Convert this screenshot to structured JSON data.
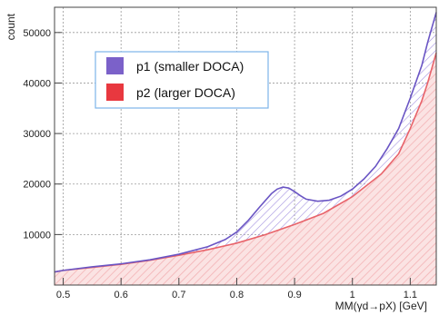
{
  "chart_data": {
    "type": "histogram",
    "xlabel": "MM(γd→pX) [GeV]",
    "ylabel": "count",
    "xlim": [
      0.485,
      1.145
    ],
    "ylim": [
      0,
      55000
    ],
    "x_ticks": [
      "0.5",
      "0.6",
      "0.7",
      "0.8",
      "0.9",
      "1",
      "1.1"
    ],
    "y_ticks": [
      "10000",
      "20000",
      "30000",
      "40000",
      "50000"
    ],
    "grid": true,
    "legend_position": "top-left",
    "series": [
      {
        "name": "p1 (smaller DOCA)",
        "color": "#7b61c9",
        "fill": "hatched",
        "x": [
          0.485,
          0.5,
          0.55,
          0.6,
          0.65,
          0.7,
          0.75,
          0.78,
          0.8,
          0.82,
          0.84,
          0.86,
          0.87,
          0.88,
          0.89,
          0.9,
          0.91,
          0.92,
          0.94,
          0.96,
          0.98,
          1.0,
          1.02,
          1.04,
          1.06,
          1.08,
          1.1,
          1.12,
          1.13,
          1.14,
          1.145
        ],
        "values": [
          2600,
          2900,
          3600,
          4200,
          5000,
          6100,
          7600,
          9000,
          10500,
          12800,
          15500,
          18100,
          19000,
          19400,
          19200,
          18500,
          17700,
          17000,
          16600,
          16800,
          17600,
          19000,
          21000,
          23500,
          27000,
          31000,
          37000,
          43500,
          48000,
          52000,
          54000
        ]
      },
      {
        "name": "p2 (larger DOCA)",
        "color": "#e8636a",
        "fill": "hatched",
        "x": [
          0.485,
          0.5,
          0.55,
          0.6,
          0.65,
          0.7,
          0.75,
          0.8,
          0.85,
          0.9,
          0.95,
          1.0,
          1.05,
          1.08,
          1.1,
          1.12,
          1.13,
          1.14,
          1.145
        ],
        "values": [
          2600,
          2900,
          3500,
          4100,
          4900,
          5900,
          7000,
          8300,
          10000,
          12000,
          14200,
          17500,
          22000,
          26000,
          31000,
          36500,
          40000,
          44000,
          46000
        ]
      }
    ]
  }
}
